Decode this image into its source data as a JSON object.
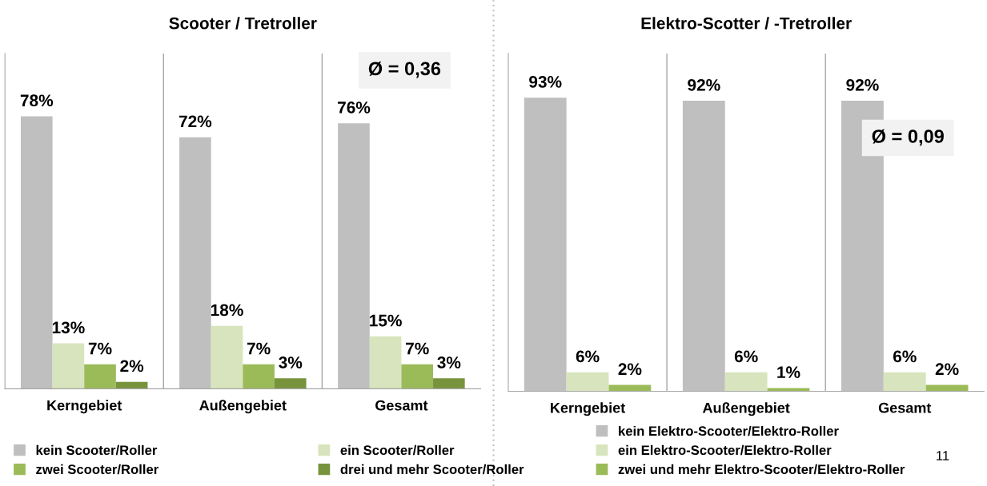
{
  "chart_data": [
    {
      "type": "bar",
      "title": "Scooter / Tretroller",
      "categories": [
        "Kerngebiet",
        "Außengebiet",
        "Gesamt"
      ],
      "ylim": [
        0,
        96
      ],
      "tick_labels": "x",
      "legend": "bottom",
      "grid": false,
      "series": [
        {
          "name": "kein Scooter/Roller",
          "color": "#bfbfbf",
          "values": [
            78,
            72,
            76
          ],
          "value_labels": [
            "78%",
            "72%",
            "76%"
          ]
        },
        {
          "name": "ein Scooter/Roller",
          "color": "#d7e4bd",
          "values": [
            13,
            18,
            15
          ],
          "value_labels": [
            "13%",
            "18%",
            "15%"
          ]
        },
        {
          "name": "zwei Scooter/Roller",
          "color": "#9bbb59",
          "values": [
            7,
            7,
            7
          ],
          "value_labels": [
            "7%",
            "7%",
            "7%"
          ]
        },
        {
          "name": "drei und mehr Scooter/Roller",
          "color": "#77933c",
          "values": [
            2,
            3,
            3
          ],
          "value_labels": [
            "2%",
            "3%",
            "3%"
          ]
        }
      ],
      "annotations": [
        "Ø = 0,36"
      ]
    },
    {
      "type": "bar",
      "title": "Elektro-Scotter / -Tretroller",
      "categories": [
        "Kerngebiet",
        "Außengebiet",
        "Gesamt"
      ],
      "ylim": [
        0,
        107
      ],
      "tick_labels": "x",
      "legend": "bottom",
      "grid": false,
      "series": [
        {
          "name": "kein Elektro-Scooter/Elektro-Roller",
          "color": "#bfbfbf",
          "values": [
            93,
            92,
            92
          ],
          "value_labels": [
            "93%",
            "92%",
            "92%"
          ]
        },
        {
          "name": "ein Elektro-Scooter/Elektro-Roller",
          "color": "#d7e4bd",
          "values": [
            6,
            6,
            6
          ],
          "value_labels": [
            "6%",
            "6%",
            "6%"
          ]
        },
        {
          "name": "zwei und mehr Elektro-Scooter/Elektro-Roller",
          "color": "#9bbb59",
          "values": [
            2,
            1,
            2
          ],
          "value_labels": [
            "2%",
            "1%",
            "2%"
          ]
        }
      ],
      "annotations": [
        "Ø = 0,09",
        "11"
      ]
    }
  ]
}
